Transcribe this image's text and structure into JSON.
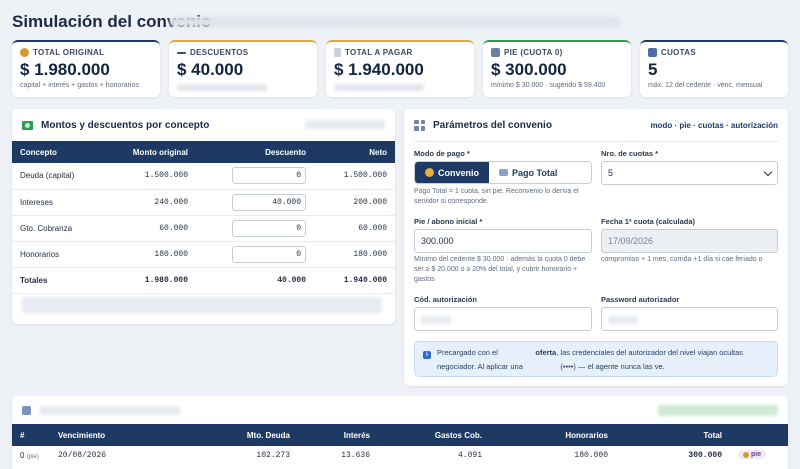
{
  "page": {
    "title": "Simulación del convenio"
  },
  "summary_cards": [
    {
      "label": "TOTAL ORIGINAL",
      "value": "$ 1.980.000",
      "sub": "capital + interés + gastos + honorarios",
      "icon": "money-bag-icon",
      "accent": "#1e3a64"
    },
    {
      "label": "DESCUENTOS",
      "value": "$ 40.000",
      "sub": "",
      "icon": "minus-icon",
      "accent": "#e0a733"
    },
    {
      "label": "TOTAL A PAGAR",
      "value": "$ 1.940.000",
      "sub": "",
      "icon": "document-icon",
      "accent": "#e0a733"
    },
    {
      "label": "PIE (CUOTA 0)",
      "value": "$ 300.000",
      "sub": "mínimo $ 30.000 · sugerido $ 59.400",
      "icon": "wallet-icon",
      "accent": "#2e9d4f"
    },
    {
      "label": "CUOTAS",
      "value": "5",
      "sub": "máx. 12 del cedente · venc. mensual",
      "icon": "calendar-icon",
      "accent": "#1e3a64"
    }
  ],
  "montos": {
    "title": "Montos y descuentos por concepto",
    "columns": [
      "Concepto",
      "Monto original",
      "Descuento",
      "Neto"
    ],
    "rows": [
      {
        "concepto": "Deuda (capital)",
        "original": "1.500.000",
        "descuento": "0",
        "neto": "1.500.000"
      },
      {
        "concepto": "Intereses",
        "original": "240.000",
        "descuento": "40.000",
        "neto": "200.000"
      },
      {
        "concepto": "Gto. Cobranza",
        "original": "60.000",
        "descuento": "0",
        "neto": "60.000"
      },
      {
        "concepto": "Honorarios",
        "original": "180.000",
        "descuento": "0",
        "neto": "180.000"
      }
    ],
    "totals": {
      "label": "Totales",
      "original": "1.980.000",
      "descuento": "40.000",
      "neto": "1.940.000"
    }
  },
  "params": {
    "title": "Parámetros del convenio",
    "legend": "modo · pie · cuotas · autorización",
    "modo_label": "Modo de pago *",
    "modo_on": "Convenio",
    "modo_off": "Pago Total",
    "modo_hint": "Pago Total = 1 cuota, sin pie. Reconvenio lo deriva el servidor si corresponde.",
    "cuotas_label": "Nro. de cuotas *",
    "cuotas_value": "5",
    "pie_label": "Pie / abono inicial *",
    "pie_value": "300.000",
    "pie_hint": "Mínimo del cedente $ 30.000 · además la cuota 0 debe ser ≥ $ 20.000 o ≥ 20% del total, y cubrir honorario + gastos",
    "fecha_label": "Fecha 1ª cuota (calculada)",
    "fecha_value": "17/09/2026",
    "fecha_hint": "compromiso + 1 mes, corrida +1 día si cae feriado o",
    "cod_label": "Cód. autorización",
    "pwd_label": "Password autorizador",
    "info_a": "Precargado con el",
    "info_b": "oferta",
    "info_c": ", las credenciales del autorizador del nivel viajan ocultas",
    "info_d": "negociador. Al aplicar una",
    "info_e": "(••••) — el agente nunca las ve."
  },
  "schedule": {
    "columns": [
      "#",
      "Vencimiento",
      "Mto. Deuda",
      "Interés",
      "Gastos Cob.",
      "Honorarios",
      "Total"
    ],
    "rows": [
      {
        "n": "0",
        "tag": "(pie)",
        "venc": "20/08/2026",
        "deuda": "102.273",
        "interes": "13.636",
        "gastos": "4.091",
        "honorarios": "180.000",
        "total": "300.000",
        "badge": "pie"
      }
    ]
  }
}
